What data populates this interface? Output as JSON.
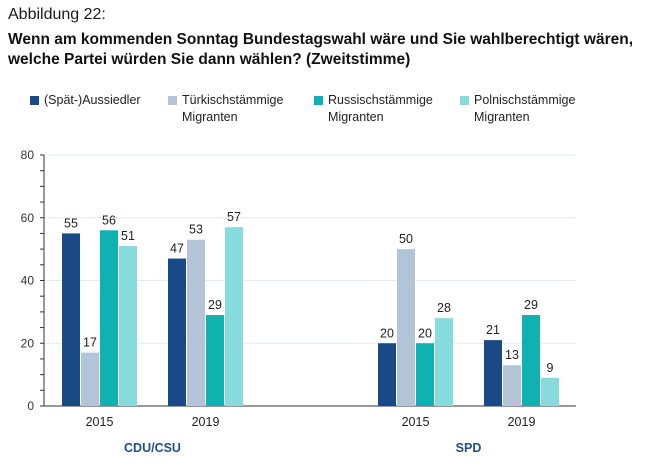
{
  "figure_label": "Abbildung 22:",
  "title_line1": "Wenn am kommenden Sonntag Bundestagswahl wäre und Sie wahlberechtigt wären,",
  "title_line2": "welche Partei würden Sie dann wählen? (Zweitstimme)",
  "colors": {
    "spaet_aussiedler": "#1a4a86",
    "tuerkisch": "#b3c4d9",
    "russisch": "#0fb1b1",
    "polnisch": "#86dcdd",
    "axis": "#333333",
    "grid": "#e3e9f0",
    "party_label": "#1f4d8f"
  },
  "chart_data": {
    "type": "bar",
    "ylim": [
      0,
      80
    ],
    "yticks": [
      0,
      20,
      40,
      60,
      80
    ],
    "grid": true,
    "legend_position": "top",
    "groups": [
      {
        "party": "CDU/CSU",
        "years": [
          "2015",
          "2019"
        ]
      },
      {
        "party": "SPD",
        "years": [
          "2015",
          "2019"
        ]
      }
    ],
    "categories": [
      "CDU/CSU 2015",
      "CDU/CSU 2019",
      "SPD 2015",
      "SPD 2019"
    ],
    "series": [
      {
        "key": "spaet_aussiedler",
        "name": "(Spät-)Aussiedler",
        "name_lines": [
          "(Spät-)Aussiedler"
        ],
        "values": [
          55,
          47,
          20,
          21
        ]
      },
      {
        "key": "tuerkisch",
        "name": "Türkischstämmige Migranten",
        "name_lines": [
          "Türkischstämmige",
          "Migranten"
        ],
        "values": [
          17,
          53,
          50,
          13
        ]
      },
      {
        "key": "russisch",
        "name": "Russischstämmige Migranten",
        "name_lines": [
          "Russischstämmige",
          "Migranten"
        ],
        "values": [
          56,
          29,
          20,
          29
        ]
      },
      {
        "key": "polnisch",
        "name": "Polnischstämmige Migranten",
        "name_lines": [
          "Polnischstämmige",
          "Migranten"
        ],
        "values": [
          51,
          57,
          28,
          9
        ]
      }
    ]
  }
}
